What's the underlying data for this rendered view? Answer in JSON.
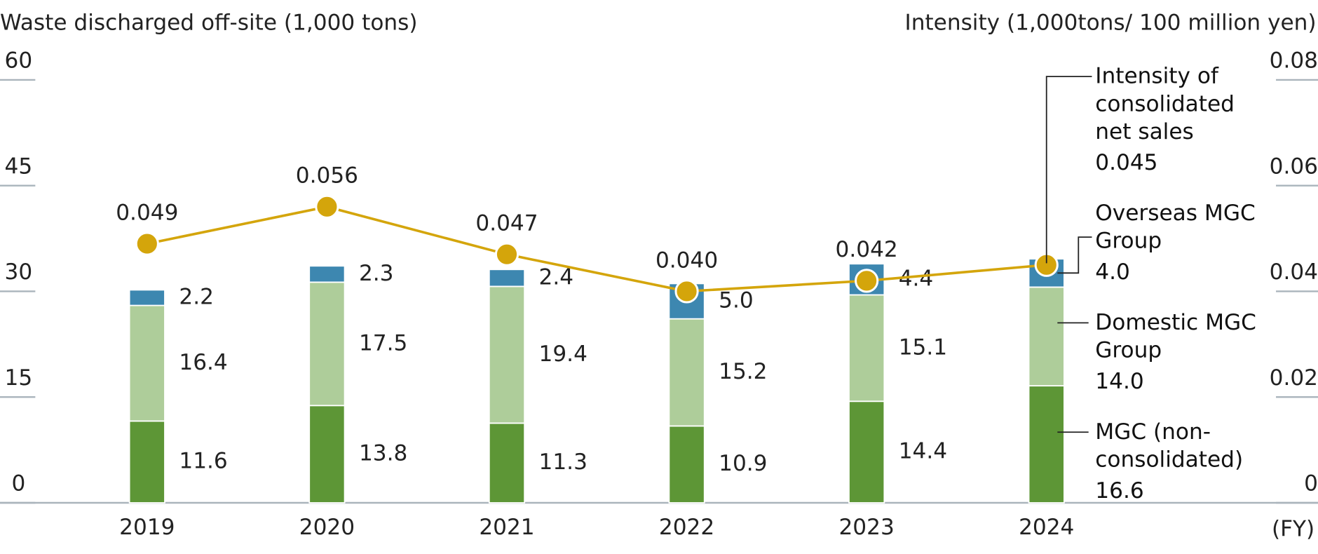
{
  "chart_data": {
    "type": "bar",
    "y_title": "Waste discharged off-site (1,000 tons)",
    "y2_title": "Intensity (1,000tons/ 100 million yen)",
    "x_unit": "(FY)",
    "categories": [
      "2019",
      "2020",
      "2021",
      "2022",
      "2023",
      "2024"
    ],
    "stacked": true,
    "ylim": [
      0,
      60
    ],
    "yticks": [
      0,
      15,
      30,
      45,
      60
    ],
    "y2lim": [
      0,
      0.08
    ],
    "y2ticks": [
      0,
      0.02,
      0.04,
      0.06,
      0.08
    ],
    "series": [
      {
        "name": "MGC (non-consolidated)",
        "color": "#5d9636",
        "values": [
          11.6,
          13.8,
          11.3,
          10.9,
          14.4,
          16.6
        ]
      },
      {
        "name": "Domestic MGC Group",
        "color": "#aecd9a",
        "values": [
          16.4,
          17.5,
          19.4,
          15.2,
          15.1,
          14.0
        ],
        "value_labels": [
          "16.4",
          "17.5",
          "19.4",
          "15.2",
          "15.1",
          "14.0"
        ]
      },
      {
        "name": "Overseas MGC Group",
        "color": "#3d87b0",
        "values": [
          2.2,
          2.3,
          2.4,
          5.0,
          4.4,
          4.0
        ],
        "value_labels": [
          "2.2",
          "2.3",
          "2.4",
          "5.0",
          "4.4",
          "4.0"
        ]
      },
      {
        "name": "Intensity of consolidated net sales",
        "type": "line",
        "axis": "y2",
        "color": "#d4a50b",
        "values": [
          0.049,
          0.056,
          0.047,
          0.04,
          0.042,
          0.045
        ],
        "value_labels": [
          "0.049",
          "0.056",
          "0.047",
          "0.040",
          "0.042",
          "0.045"
        ]
      }
    ]
  }
}
